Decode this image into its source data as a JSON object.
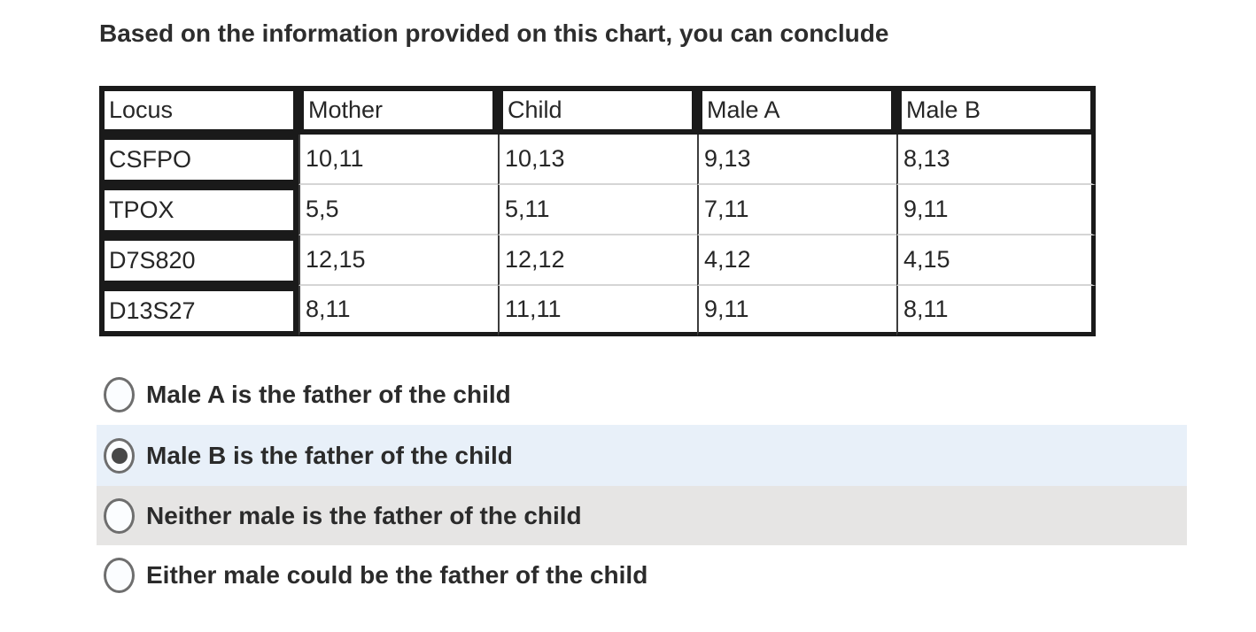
{
  "question": {
    "prompt": "Based on the information provided on this chart, you can conclude"
  },
  "table": {
    "columns": [
      "Locus",
      "Mother",
      "Child",
      "Male A",
      "Male B"
    ],
    "rows": [
      {
        "locus": "CSFPO",
        "values": [
          "10,11",
          "10,13",
          "9,13",
          "8,13"
        ]
      },
      {
        "locus": "TPOX",
        "values": [
          "5,5",
          "5,11",
          "7,11",
          "9,11"
        ]
      },
      {
        "locus": "D7S820",
        "values": [
          "12,15",
          "12,12",
          "4,12",
          "4,15"
        ]
      },
      {
        "locus": "D13S27",
        "values": [
          "8,11",
          "11,11",
          "9,11",
          "8,11"
        ]
      }
    ]
  },
  "options": [
    {
      "label": "Male A is the father of the child",
      "selected": false,
      "highlight": "none"
    },
    {
      "label": "Male B is the father of the child",
      "selected": true,
      "highlight": "blue"
    },
    {
      "label": "Neither male is the father of the child",
      "selected": false,
      "highlight": "gray"
    },
    {
      "label": "Either male could be the father of the child",
      "selected": false,
      "highlight": "none"
    }
  ],
  "colors": {
    "highlight_selected_row": "#e8f0f9",
    "highlight_neutral_row": "#e6e5e4",
    "table_border_heavy": "#1a1a1a",
    "table_divider_light": "#d5d5d5",
    "table_divider_dark": "#3d3d3d",
    "radio_border": "#6e6e6e",
    "radio_dot": "#484848",
    "radio_fill": "#fbfdff",
    "text": "#2e2e2e"
  }
}
